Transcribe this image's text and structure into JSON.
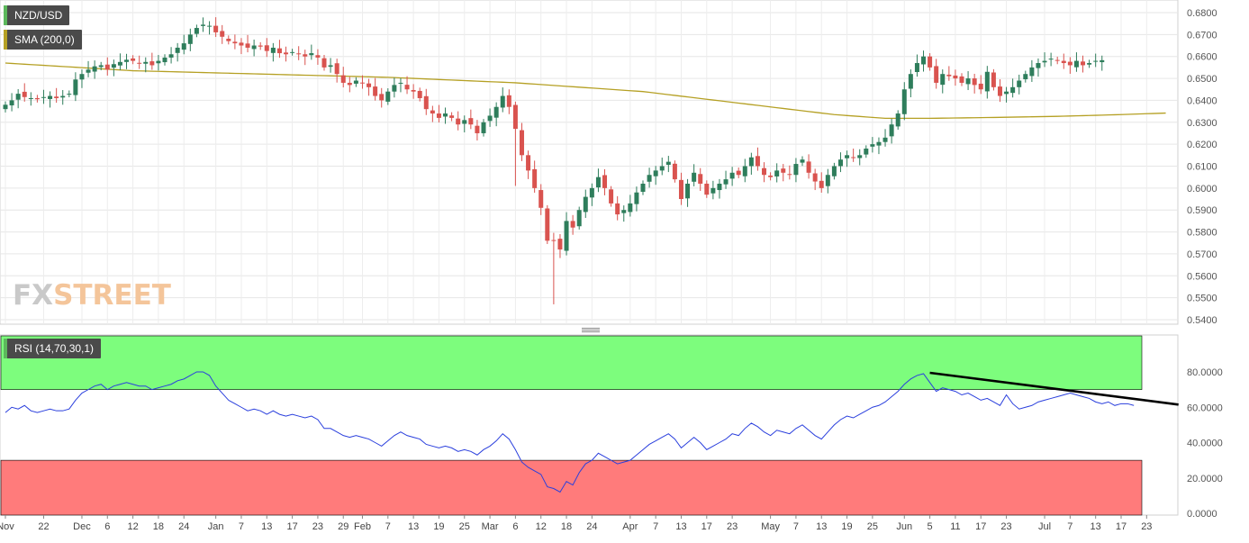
{
  "colors": {
    "up": "#2e7d5b",
    "down": "#d9534f",
    "sma": "#b5a024",
    "rsi": "#2a3fdd",
    "overbought_zone": "#7dfd7d",
    "oversold_zone": "#ff7b7b",
    "trendline": "#000000",
    "grid": "#e6e6e6",
    "legend_bg": "#4a4a4a",
    "legend_swatch_main": "#5cb85c",
    "legend_swatch_sma": "#b5a024",
    "legend_swatch_rsi": "#5cb85c"
  },
  "legend": {
    "main": "NZD/USD",
    "sma": "SMA (200,0)",
    "rsi": "RSI (14,70,30,1)"
  },
  "watermark": {
    "fx": "FX",
    "street": "STREET"
  },
  "chart_data": [
    {
      "type": "candlestick",
      "name": "NZD/USD",
      "ylim": [
        0.54,
        0.6825
      ],
      "grid": true,
      "y_ticks": [
        "0.5400",
        "0.5500",
        "0.5600",
        "0.5700",
        "0.5800",
        "0.5900",
        "0.6000",
        "0.6100",
        "0.6200",
        "0.6300",
        "0.6400",
        "0.6500",
        "0.6600",
        "0.6700",
        "0.6800"
      ],
      "x_ticks": [
        {
          "i": 0,
          "label": "Nov"
        },
        {
          "i": 6,
          "label": "22"
        },
        {
          "i": 12,
          "label": "Dec"
        },
        {
          "i": 16,
          "label": "6"
        },
        {
          "i": 20,
          "label": "12"
        },
        {
          "i": 24,
          "label": "18"
        },
        {
          "i": 28,
          "label": "24"
        },
        {
          "i": 33,
          "label": "Jan"
        },
        {
          "i": 37,
          "label": "7"
        },
        {
          "i": 41,
          "label": "13"
        },
        {
          "i": 45,
          "label": "17"
        },
        {
          "i": 49,
          "label": "23"
        },
        {
          "i": 53,
          "label": "29"
        },
        {
          "i": 56,
          "label": "Feb"
        },
        {
          "i": 60,
          "label": "7"
        },
        {
          "i": 64,
          "label": "13"
        },
        {
          "i": 68,
          "label": "19"
        },
        {
          "i": 72,
          "label": "25"
        },
        {
          "i": 76,
          "label": "Mar"
        },
        {
          "i": 80,
          "label": "6"
        },
        {
          "i": 84,
          "label": "12"
        },
        {
          "i": 88,
          "label": "18"
        },
        {
          "i": 92,
          "label": "24"
        },
        {
          "i": 98,
          "label": "Apr"
        },
        {
          "i": 102,
          "label": "7"
        },
        {
          "i": 106,
          "label": "13"
        },
        {
          "i": 110,
          "label": "17"
        },
        {
          "i": 114,
          "label": "23"
        },
        {
          "i": 120,
          "label": "May"
        },
        {
          "i": 124,
          "label": "7"
        },
        {
          "i": 128,
          "label": "13"
        },
        {
          "i": 132,
          "label": "19"
        },
        {
          "i": 136,
          "label": "25"
        },
        {
          "i": 141,
          "label": "Jun"
        },
        {
          "i": 145,
          "label": "5"
        },
        {
          "i": 149,
          "label": "11"
        },
        {
          "i": 153,
          "label": "17"
        },
        {
          "i": 157,
          "label": "23"
        },
        {
          "i": 163,
          "label": "Jul"
        },
        {
          "i": 167,
          "label": "7"
        },
        {
          "i": 171,
          "label": "13"
        },
        {
          "i": 175,
          "label": "17"
        },
        {
          "i": 179,
          "label": "23"
        }
      ],
      "close": [
        0.638,
        0.64,
        0.643,
        0.6415,
        0.641,
        0.6405,
        0.6415,
        0.642,
        0.641,
        0.642,
        0.643,
        0.6495,
        0.652,
        0.654,
        0.6555,
        0.656,
        0.654,
        0.6565,
        0.6575,
        0.6585,
        0.658,
        0.657,
        0.6575,
        0.656,
        0.658,
        0.6595,
        0.661,
        0.664,
        0.666,
        0.67,
        0.673,
        0.6745,
        0.674,
        0.671,
        0.669,
        0.667,
        0.666,
        0.665,
        0.664,
        0.665,
        0.6645,
        0.6625,
        0.664,
        0.6615,
        0.661,
        0.662,
        0.661,
        0.66,
        0.6615,
        0.6595,
        0.655,
        0.656,
        0.652,
        0.648,
        0.647,
        0.649,
        0.648,
        0.646,
        0.642,
        0.64,
        0.644,
        0.647,
        0.648,
        0.645,
        0.644,
        0.641,
        0.636,
        0.634,
        0.632,
        0.634,
        0.632,
        0.629,
        0.631,
        0.629,
        0.625,
        0.63,
        0.633,
        0.637,
        0.642,
        0.637,
        0.627,
        0.615,
        0.608,
        0.6,
        0.591,
        0.576,
        0.576,
        0.572,
        0.585,
        0.582,
        0.59,
        0.596,
        0.6,
        0.605,
        0.6,
        0.593,
        0.588,
        0.59,
        0.593,
        0.598,
        0.602,
        0.606,
        0.608,
        0.61,
        0.612,
        0.604,
        0.595,
        0.602,
        0.607,
        0.602,
        0.597,
        0.6,
        0.602,
        0.604,
        0.607,
        0.606,
        0.61,
        0.614,
        0.61,
        0.606,
        0.605,
        0.608,
        0.607,
        0.606,
        0.611,
        0.613,
        0.607,
        0.603,
        0.6,
        0.606,
        0.61,
        0.613,
        0.615,
        0.614,
        0.615,
        0.618,
        0.62,
        0.621,
        0.623,
        0.629,
        0.634,
        0.645,
        0.652,
        0.657,
        0.66,
        0.655,
        0.648,
        0.652,
        0.651,
        0.65,
        0.648,
        0.65,
        0.647,
        0.645,
        0.653,
        0.646,
        0.642,
        0.644,
        0.646,
        0.649,
        0.652,
        0.655,
        0.657,
        0.658,
        0.659,
        0.658,
        0.657,
        0.656,
        0.658,
        0.656,
        0.657,
        0.658,
        0.6583
      ],
      "sma_points": [
        [
          0,
          0.657
        ],
        [
          20,
          0.6535
        ],
        [
          40,
          0.652
        ],
        [
          60,
          0.6505
        ],
        [
          80,
          0.648
        ],
        [
          100,
          0.644
        ],
        [
          110,
          0.6405
        ],
        [
          120,
          0.637
        ],
        [
          130,
          0.6335
        ],
        [
          138,
          0.6318
        ],
        [
          145,
          0.6318
        ],
        [
          155,
          0.6322
        ],
        [
          165,
          0.6327
        ],
        [
          175,
          0.6335
        ],
        [
          182,
          0.6342
        ]
      ]
    },
    {
      "type": "line",
      "name": "RSI (14,70,30,1)",
      "ylim": [
        0,
        100
      ],
      "y_ticks": [
        "0.0000",
        "20.0000",
        "40.0000",
        "60.0000",
        "80.0000"
      ],
      "overbought": 70,
      "oversold": 30,
      "values": [
        57,
        60,
        59,
        61,
        58,
        57,
        58,
        59,
        58,
        58,
        59,
        64,
        68,
        70,
        72,
        73,
        70,
        72,
        73,
        74,
        73,
        72,
        72,
        70,
        71,
        72,
        73,
        75,
        76,
        78,
        80,
        80,
        78,
        72,
        68,
        64,
        62,
        60,
        58,
        59,
        58,
        56,
        58,
        56,
        55,
        56,
        55,
        54,
        55,
        53,
        48,
        48,
        46,
        44,
        43,
        44,
        43,
        42,
        40,
        38,
        41,
        44,
        46,
        44,
        43,
        42,
        39,
        38,
        37,
        38,
        37,
        35,
        36,
        35,
        33,
        36,
        38,
        41,
        45,
        42,
        36,
        29,
        26,
        24,
        22,
        15,
        14,
        12,
        18,
        16,
        23,
        28,
        30,
        34,
        32,
        30,
        28,
        29,
        30,
        33,
        36,
        39,
        41,
        43,
        45,
        42,
        37,
        40,
        43,
        40,
        36,
        38,
        40,
        42,
        45,
        44,
        48,
        51,
        49,
        46,
        44,
        47,
        46,
        45,
        48,
        50,
        47,
        44,
        42,
        46,
        50,
        53,
        55,
        54,
        56,
        58,
        60,
        61,
        63,
        66,
        69,
        73,
        76,
        78,
        79,
        74,
        69,
        71,
        70,
        69,
        67,
        68,
        66,
        64,
        65,
        63,
        61,
        67,
        62,
        59,
        60,
        61,
        63,
        64,
        65,
        66,
        67,
        68,
        67,
        66,
        65,
        63,
        62,
        63,
        61,
        62,
        62,
        61
      ],
      "trendline": [
        [
          145,
          79.5
        ],
        [
          184,
          61.5
        ]
      ]
    }
  ]
}
